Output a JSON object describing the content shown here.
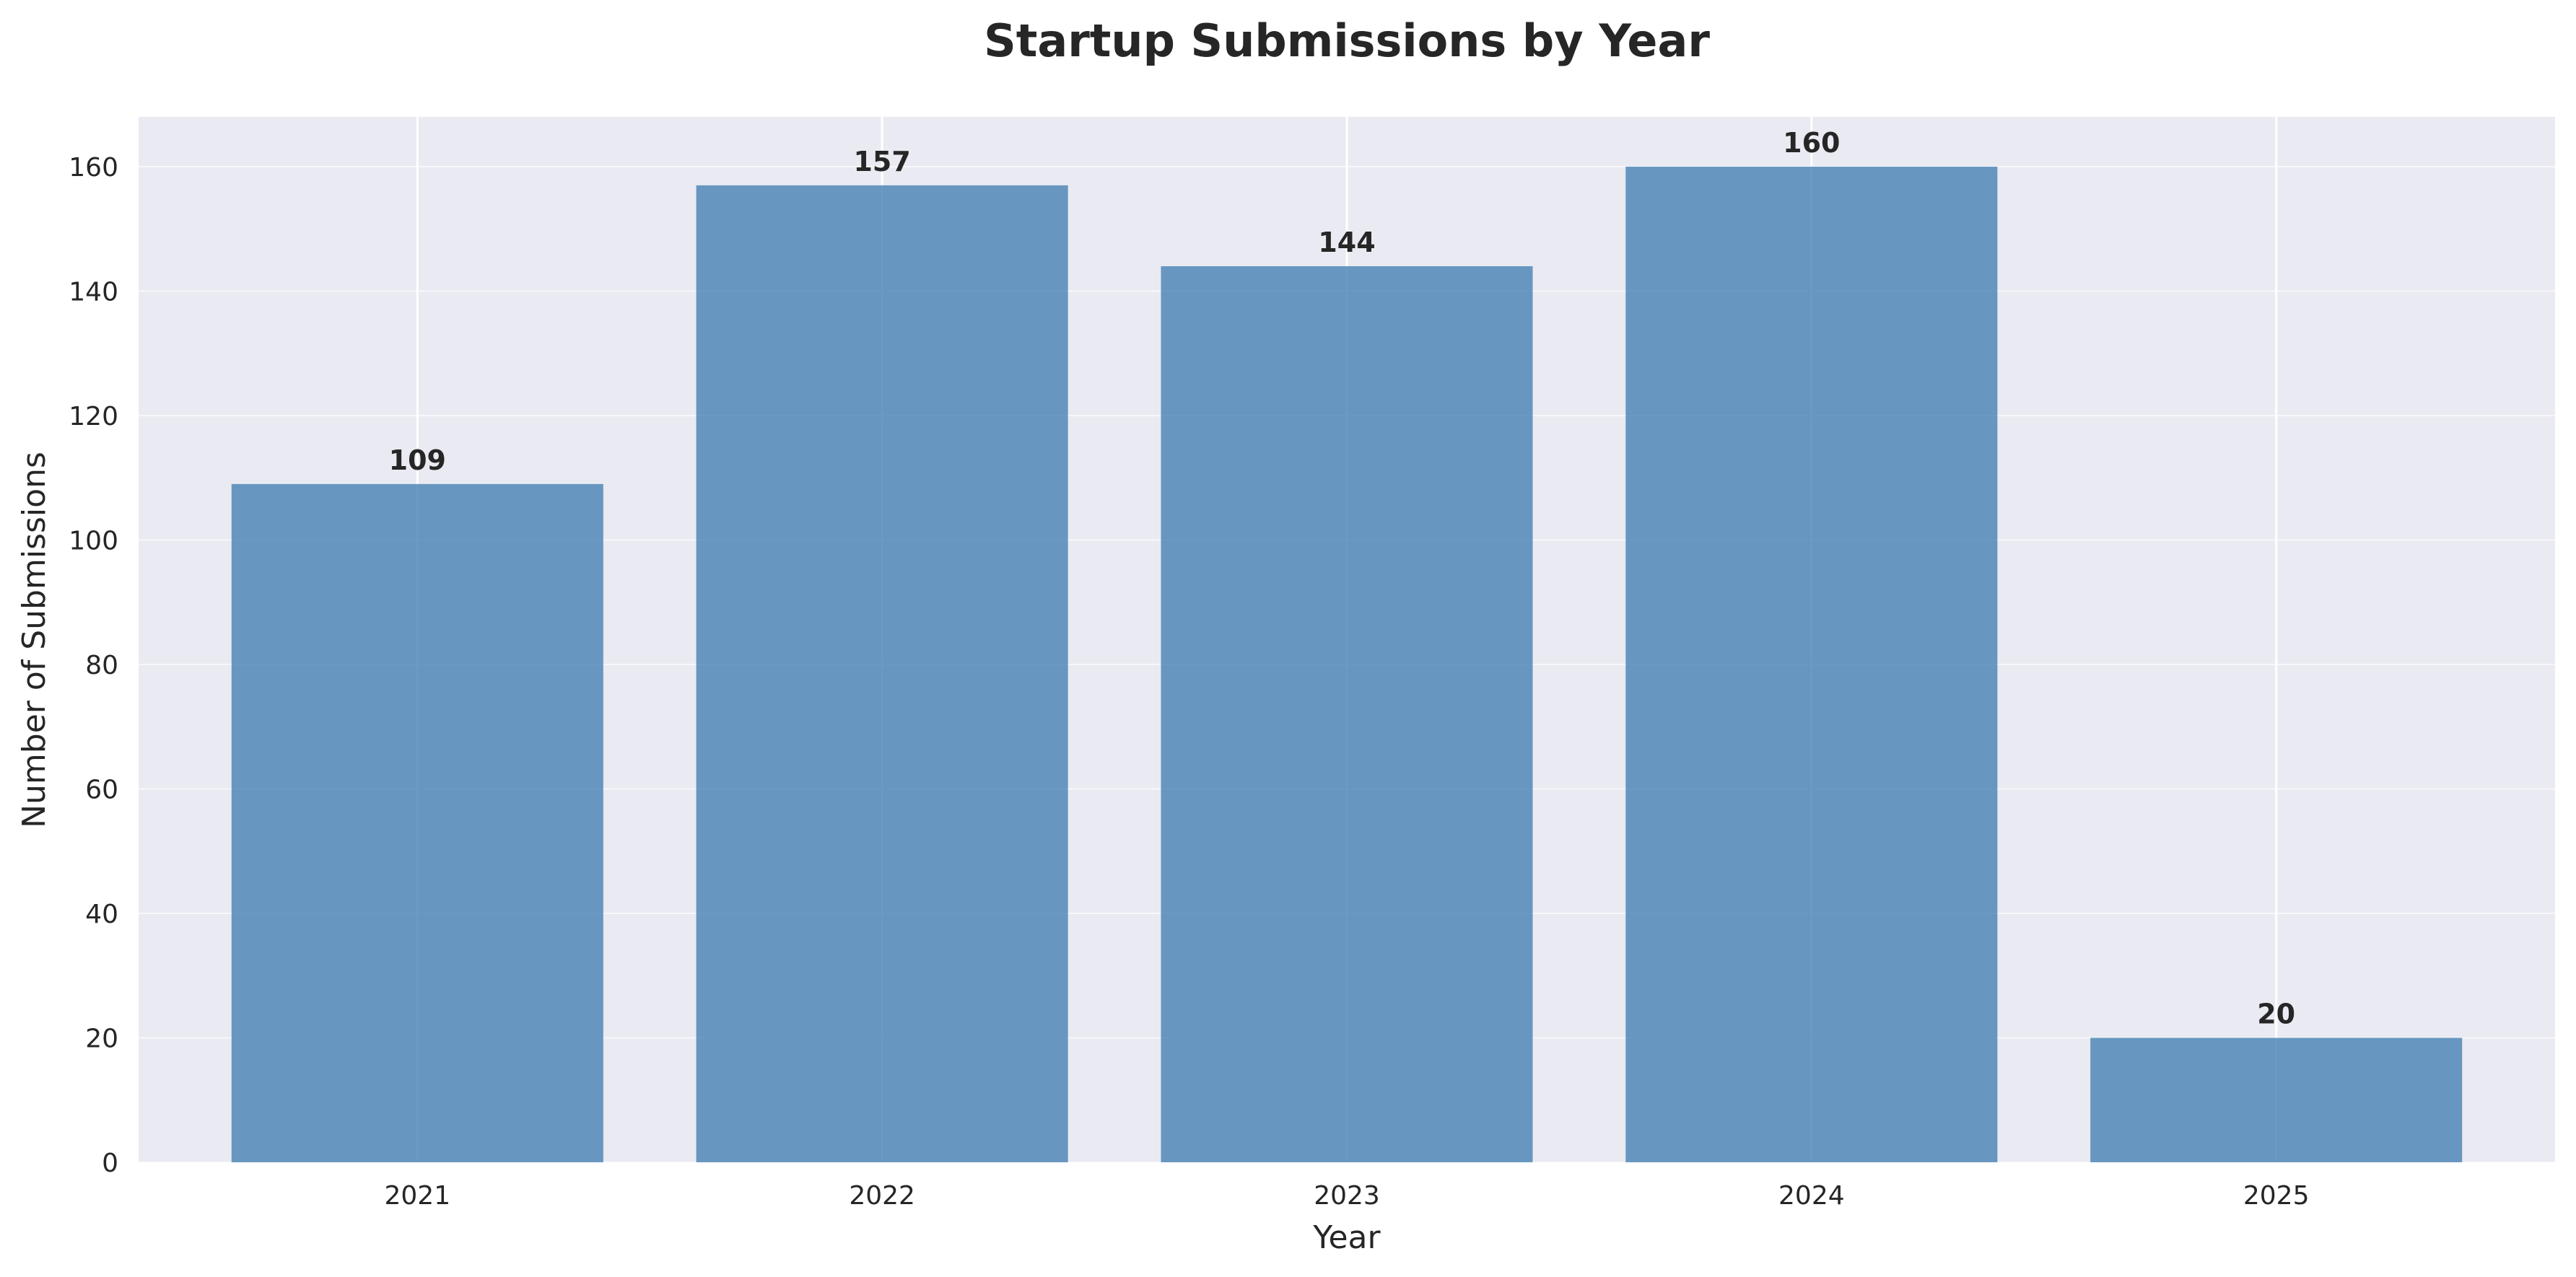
{
  "colors": {
    "plot_background": "#eaeaf2",
    "grid": "#ffffff",
    "bar": "#4682b4",
    "text": "#262626"
  },
  "chart_data": {
    "type": "bar",
    "title": "Startup Submissions by Year",
    "xlabel": "Year",
    "ylabel": "Number of Submissions",
    "categories": [
      "2021",
      "2022",
      "2023",
      "2024",
      "2025"
    ],
    "values": [
      109,
      157,
      144,
      160,
      20
    ],
    "data_labels": [
      "109",
      "157",
      "144",
      "160",
      "20"
    ],
    "ylim": [
      0,
      168
    ],
    "yticks": [
      0,
      20,
      40,
      60,
      80,
      100,
      120,
      140,
      160
    ],
    "ytick_labels": [
      "0",
      "20",
      "40",
      "60",
      "80",
      "100",
      "120",
      "140",
      "160"
    ],
    "grid": true,
    "legend": false
  }
}
